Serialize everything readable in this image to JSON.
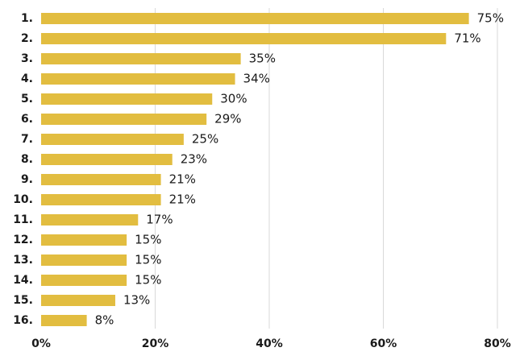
{
  "chart_data": {
    "type": "bar",
    "orientation": "horizontal",
    "title": "",
    "xlabel": "",
    "ylabel": "",
    "categories": [
      "1.",
      "2.",
      "3.",
      "4.",
      "5.",
      "6.",
      "7.",
      "8.",
      "9.",
      "10.",
      "11.",
      "12.",
      "13.",
      "14.",
      "15.",
      "16."
    ],
    "values": [
      75,
      71,
      35,
      34,
      30,
      29,
      25,
      23,
      21,
      21,
      17,
      15,
      15,
      15,
      13,
      8
    ],
    "value_labels": [
      "75%",
      "71%",
      "35%",
      "34%",
      "30%",
      "29%",
      "25%",
      "23%",
      "21%",
      "21%",
      "17%",
      "15%",
      "15%",
      "15%",
      "13%",
      "8%"
    ],
    "xlim": [
      0,
      80
    ],
    "x_ticks": [
      0,
      20,
      40,
      60,
      80
    ],
    "x_tick_labels": [
      "0%",
      "20%",
      "40%",
      "60%",
      "80%"
    ],
    "grid": "vertical",
    "legend": "none",
    "colors": {
      "bar": "#e2bd40",
      "grid": "#d9d9d9",
      "text": "#1a1a1a"
    }
  }
}
